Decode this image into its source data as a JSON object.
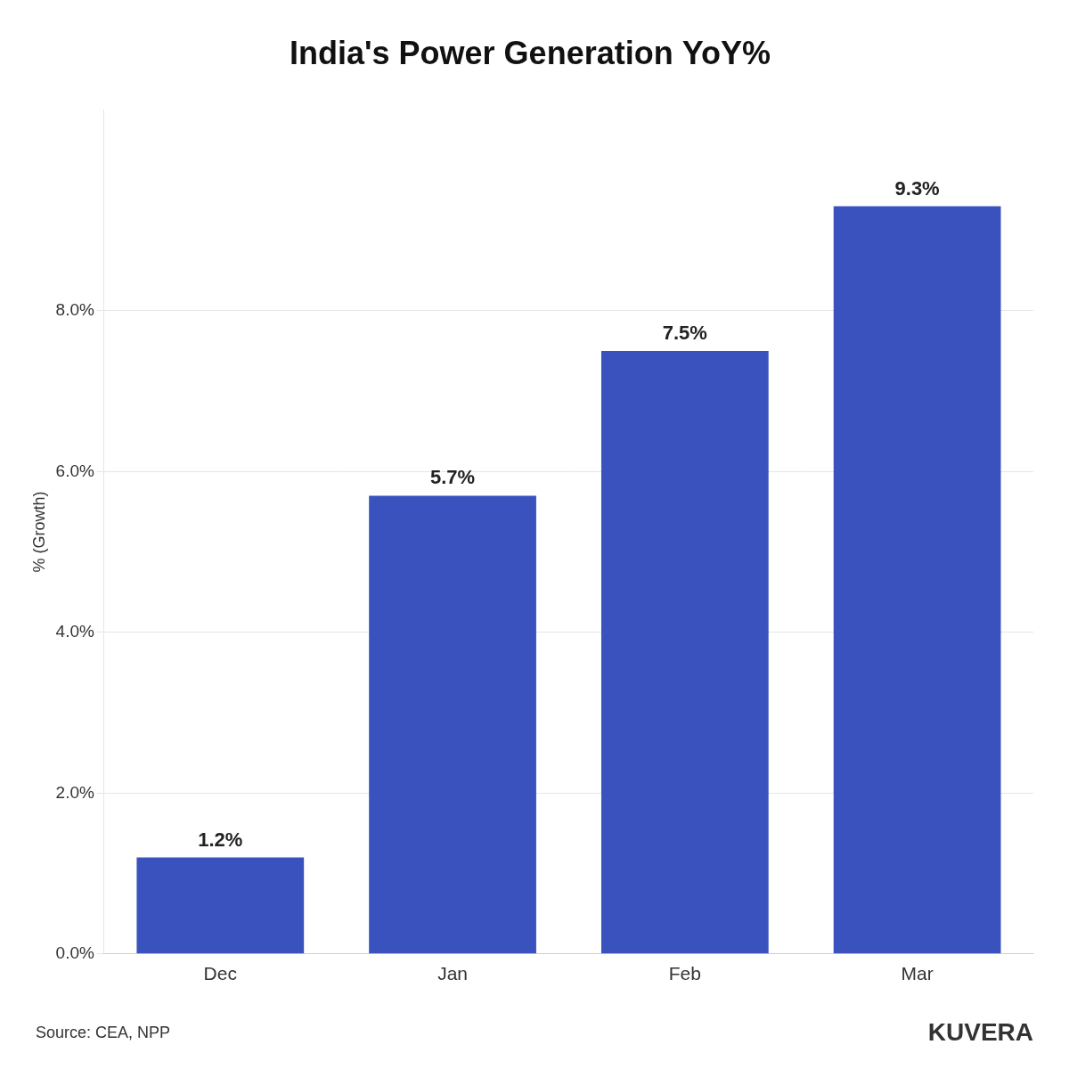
{
  "chart_data": {
    "type": "bar",
    "title": "India's Power Generation YoY%",
    "ylabel": "% (Growth)",
    "categories": [
      "Dec",
      "Jan",
      "Feb",
      "Mar"
    ],
    "values": [
      1.2,
      5.7,
      7.5,
      9.3
    ],
    "value_labels": [
      "1.2%",
      "5.7%",
      "7.5%",
      "9.3%"
    ],
    "data_labels": true,
    "color": "#3A52BE",
    "ylim": [
      0,
      10.5
    ],
    "yticks": [
      {
        "value": 0.0,
        "label": "0.0%"
      },
      {
        "value": 2.0,
        "label": "2.0%"
      },
      {
        "value": 4.0,
        "label": "4.0%"
      },
      {
        "value": 6.0,
        "label": "6.0%"
      },
      {
        "value": 8.0,
        "label": "8.0%"
      }
    ],
    "grid": true,
    "annotations": [
      "Source: CEA, NPP",
      "KUVERA"
    ]
  }
}
